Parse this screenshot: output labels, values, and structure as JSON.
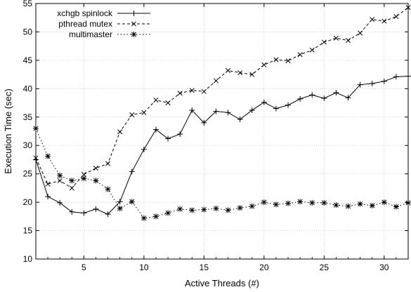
{
  "chart_data": {
    "type": "line",
    "title": "",
    "xlabel": "Active Threads (#)",
    "ylabel": "Execution Time (sec)",
    "xlim": [
      1,
      32
    ],
    "ylim": [
      10,
      55
    ],
    "xticks": [
      5,
      10,
      15,
      20,
      25,
      30
    ],
    "yticks": [
      10,
      15,
      20,
      25,
      30,
      35,
      40,
      45,
      50,
      55
    ],
    "grid": true,
    "legend_position": "top-left",
    "x": [
      1,
      2,
      3,
      4,
      5,
      6,
      7,
      8,
      9,
      10,
      11,
      12,
      13,
      14,
      15,
      16,
      17,
      18,
      19,
      20,
      21,
      22,
      23,
      24,
      25,
      26,
      27,
      28,
      29,
      30,
      31,
      32
    ],
    "series": [
      {
        "name": "xchgb spinlock",
        "marker": "plus",
        "linestyle": "solid",
        "values": [
          27.5,
          21.0,
          19.9,
          18.3,
          18.1,
          18.8,
          17.9,
          20.1,
          25.4,
          29.3,
          32.8,
          31.2,
          32.0,
          36.2,
          34.0,
          36.0,
          35.8,
          34.6,
          36.2,
          37.6,
          36.5,
          37.1,
          38.2,
          38.9,
          38.3,
          39.3,
          38.4,
          40.7,
          40.9,
          41.3,
          42.1,
          42.2
        ]
      },
      {
        "name": "pthread mutex",
        "marker": "x",
        "linestyle": "dashed",
        "values": [
          27.8,
          23.2,
          23.8,
          22.5,
          24.9,
          26.0,
          26.8,
          32.4,
          35.4,
          35.8,
          38.0,
          37.5,
          39.2,
          39.7,
          39.5,
          41.4,
          43.2,
          42.8,
          42.5,
          44.2,
          45.1,
          44.9,
          46.0,
          46.8,
          48.2,
          48.9,
          48.5,
          49.8,
          52.2,
          51.9,
          52.7,
          54.3
        ]
      },
      {
        "name": "multimaster",
        "marker": "star",
        "linestyle": "dotted",
        "values": [
          33.0,
          28.1,
          24.7,
          23.8,
          24.2,
          23.8,
          22.3,
          18.9,
          20.1,
          17.2,
          17.5,
          18.1,
          18.8,
          18.6,
          18.7,
          18.9,
          18.6,
          19.0,
          19.3,
          20.0,
          19.6,
          19.8,
          20.1,
          19.9,
          19.9,
          19.5,
          19.3,
          19.7,
          19.4,
          20.0,
          19.2,
          19.9
        ]
      }
    ]
  }
}
